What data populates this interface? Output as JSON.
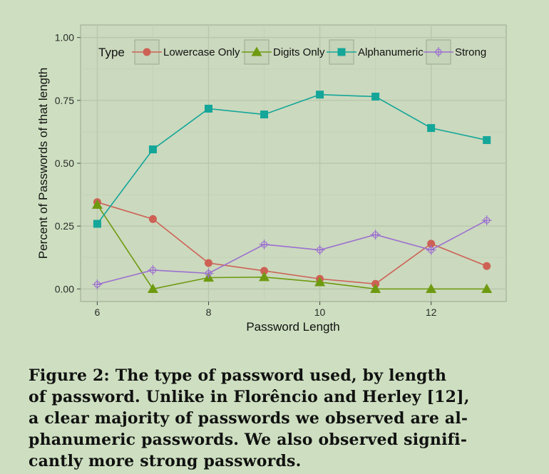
{
  "chart_data": {
    "type": "line",
    "x": [
      6,
      7,
      8,
      9,
      10,
      11,
      12,
      13
    ],
    "xlabel": "Password Length",
    "ylabel": "Percent of Passwords of that length",
    "xlim": [
      5.7,
      13.35
    ],
    "ylim": [
      -0.05,
      1.05
    ],
    "x_ticks": [
      6,
      8,
      10,
      12
    ],
    "x_tick_labels": [
      "6",
      "8",
      "10",
      "12"
    ],
    "y_ticks": [
      0,
      0.25,
      0.5,
      0.75,
      1.0
    ],
    "y_tick_labels": [
      "0.00",
      "0.25",
      "0.50",
      "0.75",
      "1.00"
    ],
    "grid": true,
    "legend_title": "Type",
    "legend_position": "top",
    "series": [
      {
        "name": "Lowercase Only",
        "color": "#cd6155",
        "marker": "circle",
        "values": [
          0.345,
          0.278,
          0.103,
          0.072,
          0.04,
          0.02,
          0.18,
          0.091
        ]
      },
      {
        "name": "Digits Only",
        "color": "#6e9a10",
        "marker": "triangle",
        "values": [
          0.335,
          0.0,
          0.045,
          0.047,
          0.027,
          0.0,
          0.0,
          0.0
        ]
      },
      {
        "name": "Alphanumeric",
        "color": "#14a699",
        "marker": "square",
        "values": [
          0.259,
          0.555,
          0.717,
          0.694,
          0.773,
          0.765,
          0.64,
          0.592
        ]
      },
      {
        "name": "Strong",
        "color": "#9b6fd0",
        "marker": "crosshair",
        "values": [
          0.018,
          0.075,
          0.062,
          0.177,
          0.155,
          0.216,
          0.155,
          0.273
        ]
      }
    ]
  },
  "caption": {
    "label": "Figure 2:",
    "lines": [
      "The type of password used, by length",
      "of password.  Unlike in Florêncio and Herley [12],",
      "a clear majority of passwords we observed are al-",
      "phanumeric passwords.  We also observed signifi-",
      "cantly more strong passwords."
    ]
  },
  "colors": {
    "page_background": "#cddfc0",
    "panel_background": "#cbd9be",
    "grid_major": "#b9c8ad",
    "grid_minor": "#c4d3b7"
  }
}
